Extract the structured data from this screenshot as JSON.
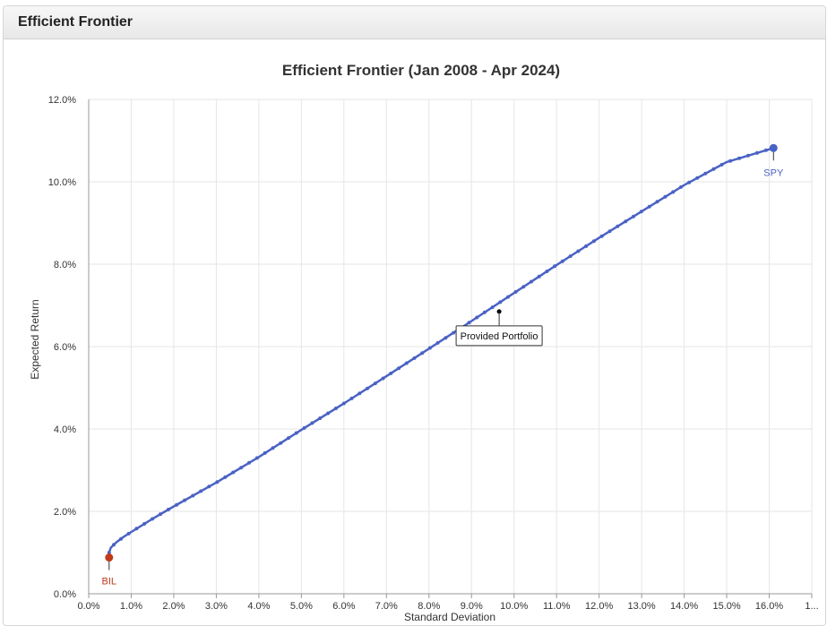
{
  "panel": {
    "title": "Efficient Frontier"
  },
  "colors": {
    "frontier": "#4a62c4",
    "spy": "#4a62c4",
    "bil": "#c0391b",
    "grid": "#e6e6e6"
  },
  "chart_data": {
    "type": "line",
    "title": "Efficient Frontier (Jan 2008 - Apr 2024)",
    "xlabel": "Standard Deviation",
    "ylabel": "Expected Return",
    "xlim": [
      0,
      17
    ],
    "ylim": [
      0,
      12
    ],
    "x_tick_labels": [
      "0.0%",
      "1.0%",
      "2.0%",
      "3.0%",
      "4.0%",
      "5.0%",
      "6.0%",
      "7.0%",
      "8.0%",
      "9.0%",
      "10.0%",
      "11.0%",
      "12.0%",
      "13.0%",
      "14.0%",
      "15.0%",
      "16.0%",
      "1..."
    ],
    "y_tick_labels": [
      "0.0%",
      "2.0%",
      "4.0%",
      "6.0%",
      "8.0%",
      "10.0%",
      "12.0%"
    ],
    "grid": true,
    "series": [
      {
        "points": [
          [
            0.48,
            1.0
          ],
          [
            0.52,
            1.12
          ],
          [
            0.65,
            1.25
          ],
          [
            0.82,
            1.38
          ],
          [
            1.0,
            1.5
          ],
          [
            1.5,
            1.82
          ],
          [
            2.0,
            2.12
          ],
          [
            3.0,
            2.7
          ],
          [
            4.0,
            3.32
          ],
          [
            5.0,
            3.98
          ],
          [
            6.0,
            4.62
          ],
          [
            7.0,
            5.28
          ],
          [
            8.0,
            5.95
          ],
          [
            9.0,
            6.62
          ],
          [
            10.0,
            7.3
          ],
          [
            11.0,
            7.98
          ],
          [
            12.0,
            8.64
          ],
          [
            13.0,
            9.28
          ],
          [
            14.0,
            9.92
          ],
          [
            15.0,
            10.48
          ],
          [
            16.1,
            10.82
          ]
        ]
      }
    ],
    "markers": [
      {
        "label": "SPY",
        "x": 16.1,
        "y": 10.82
      },
      {
        "label": "BIL",
        "x": 0.48,
        "y": 0.88
      }
    ],
    "annotation": {
      "label": "Provided Portfolio",
      "x": 9.65,
      "y": 6.85
    }
  }
}
